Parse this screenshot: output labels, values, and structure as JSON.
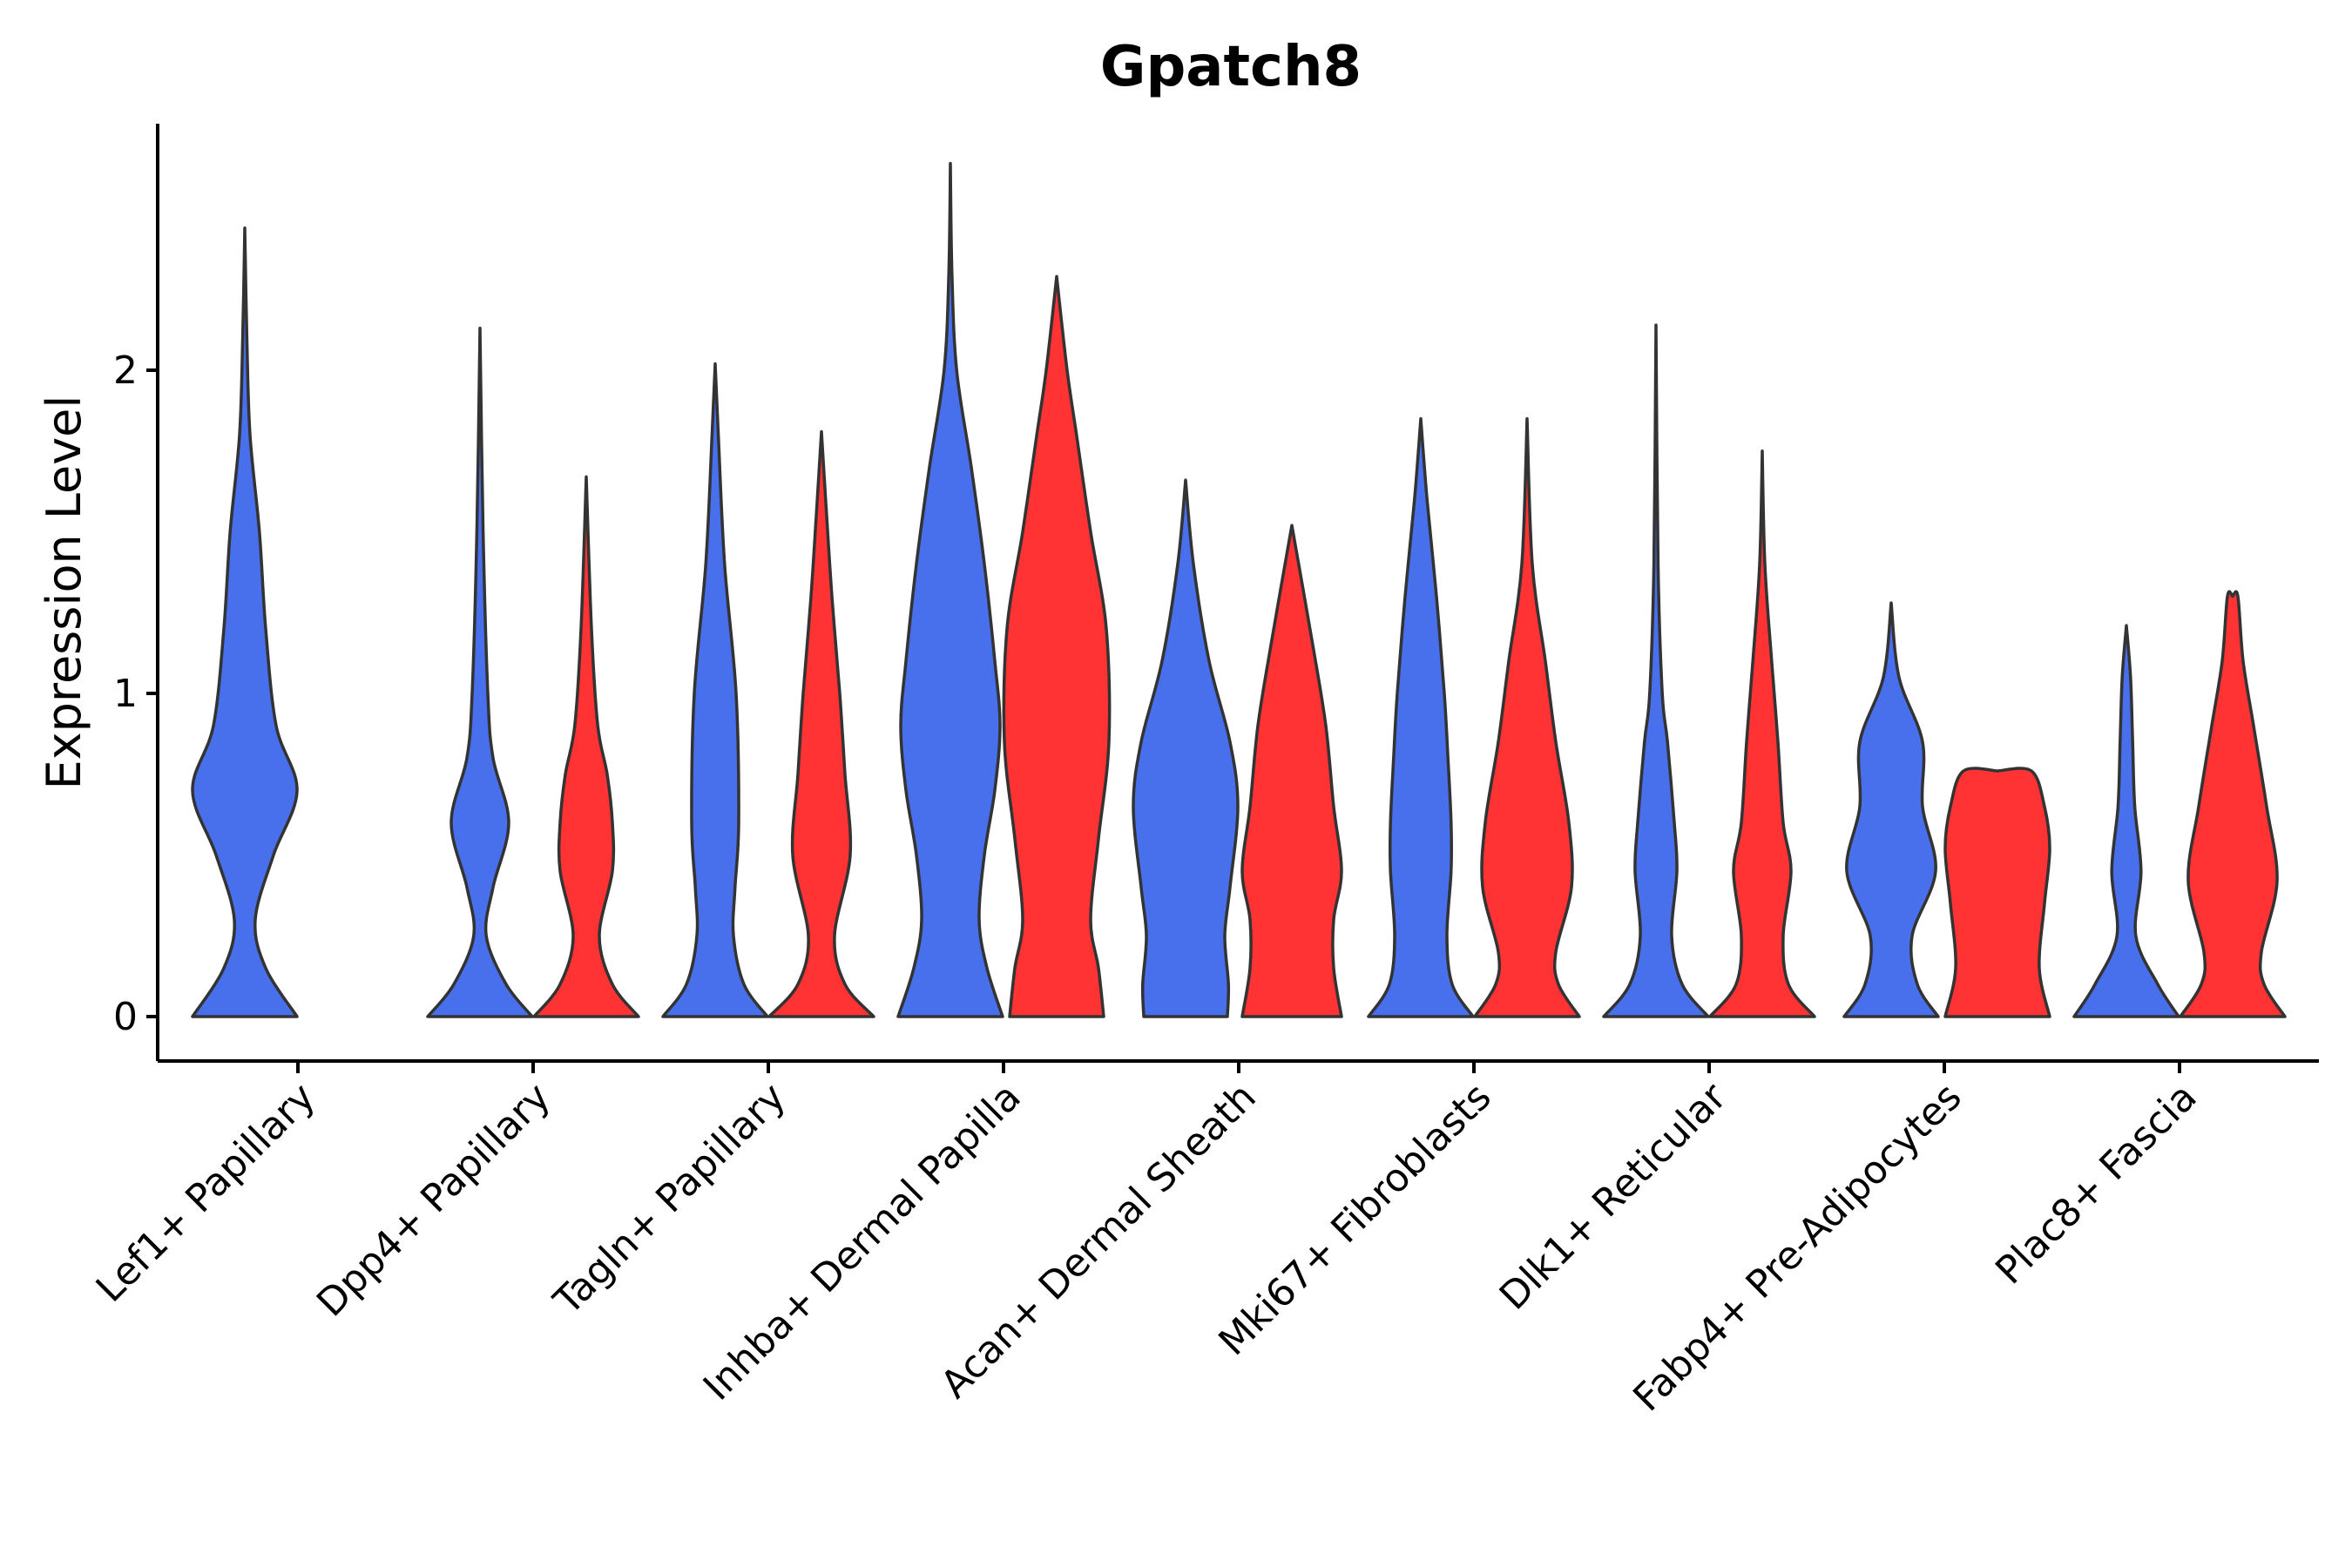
{
  "chart_data": {
    "type": "violin",
    "title": "Gpatch8",
    "xlabel": "",
    "ylabel": "Expression Level",
    "ylim": [
      -0.13,
      2.78
    ],
    "yticks": [
      0,
      1,
      2
    ],
    "grid": false,
    "legend": "none",
    "colors": {
      "group_a": "#4870EC",
      "group_b": "#FF3333",
      "outline": "#333333"
    },
    "categories": [
      "Lef1+ Papillary",
      "Dpp4+ Papillary",
      "Tagln+ Papillary",
      "Inhba+ Dermal Papilla",
      "Acan+ Dermal Sheath",
      "Mki67+ Fibroblasts",
      "Dlk1+ Reticular",
      "Fabp4+ Pre-Adipocytes",
      "Plac8+ Fascia"
    ],
    "series": [
      {
        "name": "group_a",
        "color": "#4870EC",
        "max": [
          2.44,
          2.13,
          2.02,
          2.64,
          1.66,
          1.85,
          2.14,
          1.28,
          1.21
        ],
        "profiles": [
          [
            [
              0,
              1.0
            ],
            [
              0.15,
              0.4
            ],
            [
              0.3,
              0.2
            ],
            [
              0.5,
              0.55
            ],
            [
              0.7,
              1.0
            ],
            [
              0.9,
              0.6
            ],
            [
              1.2,
              0.4
            ],
            [
              1.5,
              0.28
            ],
            [
              1.8,
              0.1
            ],
            [
              2.1,
              0.04
            ],
            [
              2.44,
              0.0
            ]
          ],
          [
            [
              0,
              1.0
            ],
            [
              0.1,
              0.5
            ],
            [
              0.25,
              0.12
            ],
            [
              0.4,
              0.25
            ],
            [
              0.6,
              0.55
            ],
            [
              0.8,
              0.25
            ],
            [
              1.0,
              0.15
            ],
            [
              1.5,
              0.06
            ],
            [
              2.13,
              0.0
            ]
          ],
          [
            [
              0,
              1.0
            ],
            [
              0.1,
              0.55
            ],
            [
              0.25,
              0.35
            ],
            [
              0.4,
              0.38
            ],
            [
              0.6,
              0.45
            ],
            [
              1.0,
              0.4
            ],
            [
              1.4,
              0.18
            ],
            [
              1.8,
              0.06
            ],
            [
              2.02,
              0.0
            ]
          ],
          [
            [
              0,
              1.0
            ],
            [
              0.15,
              0.7
            ],
            [
              0.3,
              0.55
            ],
            [
              0.5,
              0.65
            ],
            [
              0.7,
              0.85
            ],
            [
              0.9,
              0.95
            ],
            [
              1.1,
              0.85
            ],
            [
              1.4,
              0.65
            ],
            [
              1.7,
              0.4
            ],
            [
              2.0,
              0.12
            ],
            [
              2.3,
              0.03
            ],
            [
              2.64,
              0.0
            ]
          ],
          [
            [
              0,
              0.8
            ],
            [
              0.1,
              0.82
            ],
            [
              0.25,
              0.75
            ],
            [
              0.4,
              0.85
            ],
            [
              0.65,
              1.0
            ],
            [
              0.85,
              0.85
            ],
            [
              1.1,
              0.45
            ],
            [
              1.4,
              0.15
            ],
            [
              1.66,
              0.0
            ]
          ],
          [
            [
              0,
              1.0
            ],
            [
              0.1,
              0.6
            ],
            [
              0.25,
              0.5
            ],
            [
              0.45,
              0.58
            ],
            [
              0.6,
              0.58
            ],
            [
              0.8,
              0.52
            ],
            [
              1.0,
              0.45
            ],
            [
              1.3,
              0.3
            ],
            [
              1.6,
              0.12
            ],
            [
              1.85,
              0.0
            ]
          ],
          [
            [
              0,
              1.0
            ],
            [
              0.1,
              0.5
            ],
            [
              0.25,
              0.3
            ],
            [
              0.45,
              0.4
            ],
            [
              0.6,
              0.35
            ],
            [
              0.85,
              0.22
            ],
            [
              1.0,
              0.12
            ],
            [
              1.4,
              0.04
            ],
            [
              2.14,
              0.0
            ]
          ],
          [
            [
              0,
              0.9
            ],
            [
              0.1,
              0.5
            ],
            [
              0.25,
              0.4
            ],
            [
              0.45,
              0.85
            ],
            [
              0.65,
              0.6
            ],
            [
              0.85,
              0.6
            ],
            [
              1.05,
              0.15
            ],
            [
              1.28,
              0.0
            ]
          ],
          [
            [
              0,
              1.0
            ],
            [
              0.1,
              0.6
            ],
            [
              0.25,
              0.18
            ],
            [
              0.45,
              0.28
            ],
            [
              0.65,
              0.16
            ],
            [
              0.85,
              0.12
            ],
            [
              1.05,
              0.08
            ],
            [
              1.21,
              0.0
            ]
          ]
        ]
      },
      {
        "name": "group_b",
        "color": "#FF3333",
        "max": [
          null,
          1.67,
          1.81,
          2.29,
          1.52,
          1.85,
          1.75,
          0.76,
          1.3
        ],
        "profiles": [
          null,
          [
            [
              0,
              1.0
            ],
            [
              0.1,
              0.5
            ],
            [
              0.25,
              0.25
            ],
            [
              0.45,
              0.5
            ],
            [
              0.6,
              0.5
            ],
            [
              0.75,
              0.4
            ],
            [
              0.9,
              0.22
            ],
            [
              1.2,
              0.1
            ],
            [
              1.67,
              0.0
            ]
          ],
          [
            [
              0,
              1.0
            ],
            [
              0.1,
              0.45
            ],
            [
              0.25,
              0.25
            ],
            [
              0.5,
              0.55
            ],
            [
              0.75,
              0.45
            ],
            [
              1.0,
              0.35
            ],
            [
              1.3,
              0.2
            ],
            [
              1.6,
              0.08
            ],
            [
              1.81,
              0.0
            ]
          ],
          [
            [
              0,
              0.9
            ],
            [
              0.15,
              0.8
            ],
            [
              0.3,
              0.65
            ],
            [
              0.55,
              0.8
            ],
            [
              0.85,
              1.0
            ],
            [
              1.2,
              0.95
            ],
            [
              1.5,
              0.65
            ],
            [
              1.8,
              0.38
            ],
            [
              2.0,
              0.2
            ],
            [
              2.29,
              0.0
            ]
          ],
          [
            [
              0,
              0.95
            ],
            [
              0.15,
              0.8
            ],
            [
              0.3,
              0.8
            ],
            [
              0.45,
              0.95
            ],
            [
              0.65,
              0.8
            ],
            [
              0.9,
              0.65
            ],
            [
              1.15,
              0.4
            ],
            [
              1.52,
              0.0
            ]
          ],
          [
            [
              0,
              1.0
            ],
            [
              0.1,
              0.6
            ],
            [
              0.2,
              0.55
            ],
            [
              0.4,
              0.85
            ],
            [
              0.6,
              0.8
            ],
            [
              0.85,
              0.55
            ],
            [
              1.1,
              0.35
            ],
            [
              1.4,
              0.1
            ],
            [
              1.85,
              0.0
            ]
          ],
          [
            [
              0,
              1.0
            ],
            [
              0.1,
              0.5
            ],
            [
              0.25,
              0.4
            ],
            [
              0.45,
              0.55
            ],
            [
              0.6,
              0.4
            ],
            [
              0.85,
              0.3
            ],
            [
              1.1,
              0.18
            ],
            [
              1.4,
              0.05
            ],
            [
              1.75,
              0.0
            ]
          ],
          [
            [
              0,
              1.0
            ],
            [
              0.15,
              0.8
            ],
            [
              0.35,
              0.9
            ],
            [
              0.52,
              1.0
            ],
            [
              0.65,
              0.9
            ],
            [
              0.76,
              0.65
            ],
            [
              0.76,
              0.0
            ]
          ],
          [
            [
              0,
              1.0
            ],
            [
              0.1,
              0.6
            ],
            [
              0.2,
              0.55
            ],
            [
              0.42,
              0.85
            ],
            [
              0.65,
              0.65
            ],
            [
              0.9,
              0.4
            ],
            [
              1.1,
              0.2
            ],
            [
              1.3,
              0.1
            ],
            [
              1.3,
              0.0
            ]
          ]
        ]
      }
    ]
  }
}
